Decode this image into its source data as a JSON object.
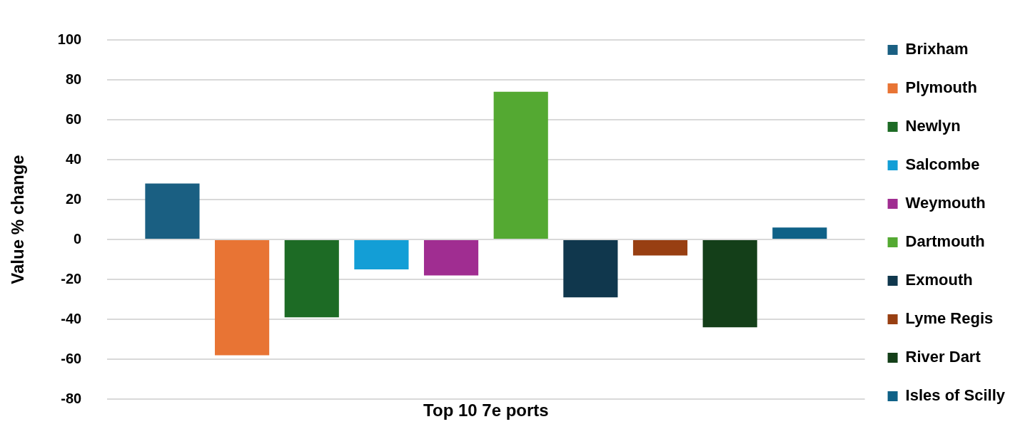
{
  "chart_data": {
    "type": "bar",
    "categories": [
      "Top 10 7e ports"
    ],
    "ylabel": "Value % change",
    "ylim": [
      -80,
      100
    ],
    "yticks": [
      -80,
      -60,
      -40,
      -20,
      0,
      20,
      40,
      60,
      80,
      100
    ],
    "grid": "y",
    "legend": "right",
    "series": [
      {
        "name": "Brixham",
        "color": "#1a5f82",
        "values": [
          28
        ]
      },
      {
        "name": "Plymouth",
        "color": "#e87434",
        "values": [
          -58
        ]
      },
      {
        "name": "Newlyn",
        "color": "#1d6b25",
        "values": [
          -39
        ]
      },
      {
        "name": "Salcombe",
        "color": "#139ed6",
        "values": [
          -15
        ]
      },
      {
        "name": "Weymouth",
        "color": "#a02d91",
        "values": [
          -18
        ]
      },
      {
        "name": "Dartmouth",
        "color": "#54a932",
        "values": [
          74
        ]
      },
      {
        "name": "Exmouth",
        "color": "#10374d",
        "values": [
          -29
        ]
      },
      {
        "name": "Lyme Regis",
        "color": "#983f12",
        "values": [
          -8
        ]
      },
      {
        "name": "River Dart",
        "color": "#143f19",
        "values": [
          -44
        ]
      },
      {
        "name": "Isles of Scilly",
        "color": "#0f6187",
        "values": [
          6
        ]
      }
    ]
  }
}
